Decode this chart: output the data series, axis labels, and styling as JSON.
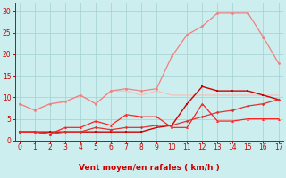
{
  "x": [
    0,
    1,
    2,
    3,
    4,
    5,
    6,
    7,
    8,
    9,
    10,
    11,
    12,
    13,
    14,
    15,
    16,
    17
  ],
  "line_pale1": [
    8.5,
    7.0,
    8.5,
    9.0,
    10.5,
    8.5,
    11.5,
    11.5,
    10.5,
    11.5,
    10.5,
    10.5,
    10.5,
    10.5,
    10.5,
    10.5,
    10.5,
    10.5
  ],
  "line_pale2": [
    8.5,
    7.0,
    8.5,
    9.0,
    10.5,
    8.5,
    11.5,
    12.0,
    11.5,
    12.0,
    19.5,
    24.5,
    26.5,
    29.5,
    29.5,
    29.5,
    24.0,
    18.0
  ],
  "line_red1": [
    2.0,
    2.0,
    2.0,
    2.0,
    2.0,
    2.0,
    2.0,
    2.0,
    2.0,
    3.0,
    3.5,
    8.5,
    12.5,
    11.5,
    11.5,
    11.5,
    10.5,
    9.5
  ],
  "line_red2": [
    2.0,
    2.0,
    1.5,
    3.0,
    3.0,
    4.5,
    3.5,
    6.0,
    5.5,
    5.5,
    3.0,
    3.0,
    8.5,
    4.5,
    4.5,
    5.0,
    5.0,
    5.0
  ],
  "line_red3": [
    2.0,
    2.0,
    1.5,
    2.0,
    2.0,
    3.0,
    2.5,
    3.0,
    3.0,
    3.5,
    3.5,
    4.5,
    5.5,
    6.5,
    7.0,
    8.0,
    8.5,
    9.5
  ],
  "color_pale_pink": "#f5c0c0",
  "color_pink": "#f08080",
  "color_red_dark": "#cc0000",
  "color_red_bright": "#ff2222",
  "color_red_med": "#dd3333",
  "xlabel": "Vent moyen/en rafales ( km/h )",
  "yticks": [
    0,
    5,
    10,
    15,
    20,
    25,
    30
  ],
  "xlim": [
    -0.3,
    17.3
  ],
  "ylim": [
    0,
    32
  ],
  "bg_color": "#cceeee",
  "grid_color": "#aad4d4",
  "label_color": "#cc0000",
  "arrow_angles": [
    225,
    270,
    270,
    270,
    270,
    225,
    270,
    270,
    225,
    270,
    315,
    315,
    315,
    315,
    315,
    315,
    315,
    315
  ]
}
